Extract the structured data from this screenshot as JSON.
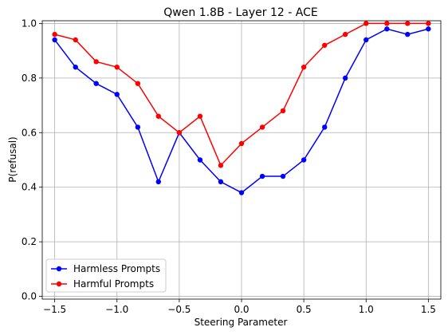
{
  "chart_data": {
    "type": "line",
    "title": "Qwen 1.8B - Layer 12 - ACE",
    "xlabel": "Steering Parameter",
    "ylabel": "P(refusal)",
    "xlim": [
      -1.6,
      1.6
    ],
    "ylim": [
      -0.01,
      1.01
    ],
    "xticks": [
      -1.5,
      -1.0,
      -0.5,
      0.0,
      0.5,
      1.0,
      1.5
    ],
    "xtick_labels": [
      "−1.5",
      "−1.0",
      "−0.5",
      "0.0",
      "0.5",
      "1.0",
      "1.5"
    ],
    "yticks": [
      0.0,
      0.2,
      0.4,
      0.6,
      0.8,
      1.0
    ],
    "ytick_labels": [
      "0.0",
      "0.2",
      "0.4",
      "0.6",
      "0.8",
      "1.0"
    ],
    "grid": true,
    "legend_position": "lower-left",
    "x": [
      -1.5,
      -1.333,
      -1.167,
      -1.0,
      -0.833,
      -0.667,
      -0.5,
      -0.333,
      -0.167,
      0.0,
      0.167,
      0.333,
      0.5,
      0.667,
      0.833,
      1.0,
      1.167,
      1.333,
      1.5
    ],
    "series": [
      {
        "name": "Harmless Prompts",
        "color": "#0000ff",
        "values": [
          0.94,
          0.84,
          0.78,
          0.74,
          0.62,
          0.42,
          0.6,
          0.5,
          0.42,
          0.38,
          0.44,
          0.44,
          0.5,
          0.62,
          0.8,
          0.94,
          0.98,
          0.96,
          0.98
        ]
      },
      {
        "name": "Harmful Prompts",
        "color": "#ff0000",
        "values": [
          0.96,
          0.94,
          0.86,
          0.84,
          0.78,
          0.66,
          0.6,
          0.66,
          0.48,
          0.56,
          0.62,
          0.68,
          0.84,
          0.92,
          0.96,
          1.0,
          1.0,
          1.0,
          1.0
        ]
      }
    ]
  }
}
